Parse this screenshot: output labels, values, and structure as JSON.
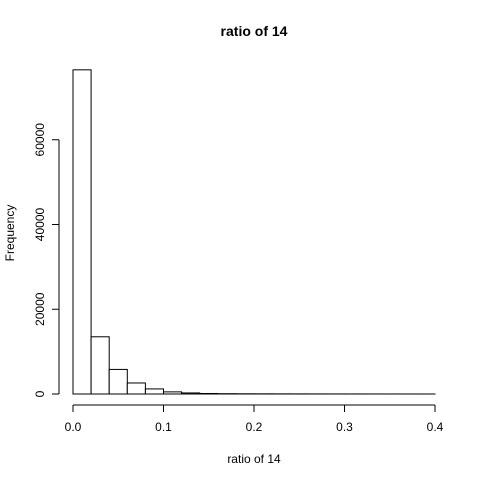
{
  "chart_data": {
    "type": "bar",
    "title": "ratio of 14",
    "xlabel": "ratio of 14",
    "ylabel": "Frequency",
    "xlim": [
      0.0,
      0.4
    ],
    "ylim": [
      0,
      80000
    ],
    "bin_edges": [
      0.0,
      0.02,
      0.04,
      0.06,
      0.08,
      0.1,
      0.12,
      0.14,
      0.16,
      0.18,
      0.2,
      0.22,
      0.24,
      0.26,
      0.28,
      0.3,
      0.32,
      0.34,
      0.36,
      0.38,
      0.4
    ],
    "values": [
      76500,
      13500,
      5800,
      2600,
      1200,
      500,
      250,
      120,
      70,
      50,
      40,
      30,
      25,
      20,
      15,
      12,
      10,
      8,
      6,
      5
    ],
    "x_ticks": [
      0.0,
      0.1,
      0.2,
      0.3,
      0.4
    ],
    "x_tick_labels": [
      "0.0",
      "0.1",
      "0.2",
      "0.3",
      "0.4"
    ],
    "y_ticks": [
      0,
      20000,
      40000,
      60000
    ],
    "y_tick_labels": [
      "0",
      "20000",
      "40000",
      "60000"
    ],
    "grid": false,
    "legend": "none"
  }
}
